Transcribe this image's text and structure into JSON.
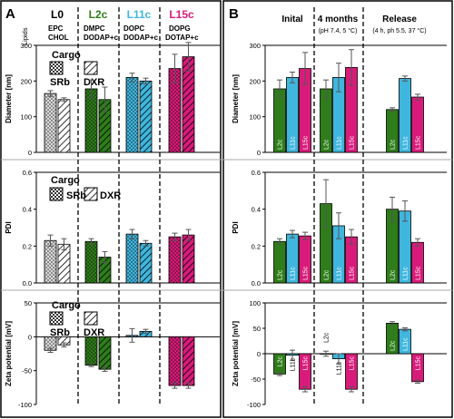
{
  "panels": {
    "A": {
      "letter": "A"
    },
    "B": {
      "letter": "B"
    }
  },
  "groupsA": [
    {
      "code": "L0",
      "lipid1": "EPC",
      "lipid2": "CHOL",
      "color": "#d8d8d8"
    },
    {
      "code": "L2c",
      "lipid1": "DMPC",
      "lipid2": "DODAP+c",
      "color": "#2e7d1a"
    },
    {
      "code": "L11c",
      "lipid1": "DOPC",
      "lipid2": "DODAP+c",
      "color": "#3fb6dd"
    },
    {
      "code": "L15c",
      "lipid1": "DOPG",
      "lipid2": "DOTAP+c",
      "color": "#d81b7a"
    }
  ],
  "lipids_label": "Lipids",
  "legend": {
    "title": "Cargo",
    "srb": "SRb",
    "dxr": "DXR"
  },
  "conditionsB": [
    {
      "title": "Inital",
      "sub": ""
    },
    {
      "title": "4 months",
      "sub": "(pH 7.4, 5 °C)"
    },
    {
      "title": "Release",
      "sub": "(4 h, ph 5.5, 37 °C)"
    }
  ],
  "colors": {
    "L2c": "#2e7d1a",
    "L11c": "#3fb6dd",
    "L15c": "#d81b7a",
    "L0": "#ffffff"
  },
  "chart_data": [
    {
      "panel": "A",
      "type": "bar",
      "ylabel": "Diameter [nm]",
      "ylim": [
        0,
        300
      ],
      "yticks": [
        0,
        100,
        200,
        300
      ],
      "categories": [
        "L0",
        "L2c",
        "L11c",
        "L15c"
      ],
      "series": [
        {
          "name": "SRb",
          "values": [
            165,
            178,
            210,
            235
          ],
          "errors": [
            8,
            25,
            12,
            40
          ]
        },
        {
          "name": "DXR",
          "values": [
            148,
            148,
            200,
            268
          ],
          "errors": [
            5,
            35,
            8,
            40
          ]
        }
      ]
    },
    {
      "panel": "A",
      "type": "bar",
      "ylabel": "PDI",
      "ylim": [
        0,
        0.6
      ],
      "yticks": [
        0,
        0.2,
        0.4,
        0.6
      ],
      "categories": [
        "L0",
        "L2c",
        "L11c",
        "L15c"
      ],
      "series": [
        {
          "name": "SRb",
          "values": [
            0.23,
            0.225,
            0.265,
            0.25
          ],
          "errors": [
            0.03,
            0.015,
            0.025,
            0.02
          ]
        },
        {
          "name": "DXR",
          "values": [
            0.21,
            0.14,
            0.215,
            0.26
          ],
          "errors": [
            0.03,
            0.03,
            0.015,
            0.03
          ]
        }
      ]
    },
    {
      "panel": "A",
      "type": "bar",
      "ylabel": "Zeta potential [mV]",
      "ylim": [
        -100,
        50
      ],
      "yticks": [
        -100,
        -50,
        0,
        50
      ],
      "categories": [
        "L0",
        "L2c",
        "L11c",
        "L15c"
      ],
      "series": [
        {
          "name": "SRb",
          "values": [
            -20,
            -42,
            2,
            -72
          ],
          "errors": [
            3,
            2,
            10,
            4
          ]
        },
        {
          "name": "DXR",
          "values": [
            -12,
            -48,
            8,
            -72
          ],
          "errors": [
            3,
            3,
            3,
            4
          ]
        }
      ]
    },
    {
      "panel": "B",
      "type": "bar",
      "ylabel": "Diameter [nm]",
      "ylim": [
        0,
        300
      ],
      "yticks": [
        0,
        100,
        200,
        300
      ],
      "categories": [
        "Inital",
        "4 months",
        "Release"
      ],
      "series": [
        {
          "name": "L2c",
          "values": [
            178,
            178,
            120
          ],
          "errors": [
            25,
            25,
            5
          ]
        },
        {
          "name": "L11c",
          "values": [
            210,
            210,
            207
          ],
          "errors": [
            15,
            40,
            7
          ]
        },
        {
          "name": "L15c",
          "values": [
            235,
            238,
            155
          ],
          "errors": [
            45,
            50,
            8
          ]
        }
      ]
    },
    {
      "panel": "B",
      "type": "bar",
      "ylabel": "PDI",
      "ylim": [
        0,
        0.6
      ],
      "yticks": [
        0,
        0.2,
        0.4,
        0.6
      ],
      "categories": [
        "Inital",
        "4 months",
        "Release"
      ],
      "series": [
        {
          "name": "L2c",
          "values": [
            0.225,
            0.43,
            0.4
          ],
          "errors": [
            0.015,
            0.13,
            0.065
          ]
        },
        {
          "name": "L11c",
          "values": [
            0.265,
            0.31,
            0.39
          ],
          "errors": [
            0.02,
            0.07,
            0.055
          ]
        },
        {
          "name": "L15c",
          "values": [
            0.255,
            0.25,
            0.22
          ],
          "errors": [
            0.02,
            0.04,
            0.02
          ]
        }
      ]
    },
    {
      "panel": "B",
      "type": "bar",
      "ylabel": "Zeta potential [mV]",
      "ylim": [
        -100,
        100
      ],
      "yticks": [
        -100,
        -50,
        0,
        50,
        100
      ],
      "categories": [
        "Inital",
        "4 months",
        "Release"
      ],
      "series": [
        {
          "name": "L2c",
          "values": [
            -40,
            0,
            60
          ],
          "errors": [
            3,
            5,
            3
          ]
        },
        {
          "name": "L11c",
          "values": [
            -3,
            -10,
            48
          ],
          "errors": [
            10,
            10,
            3
          ]
        },
        {
          "name": "L15c",
          "values": [
            -70,
            -70,
            -55
          ],
          "errors": [
            5,
            5,
            3
          ]
        }
      ]
    }
  ]
}
